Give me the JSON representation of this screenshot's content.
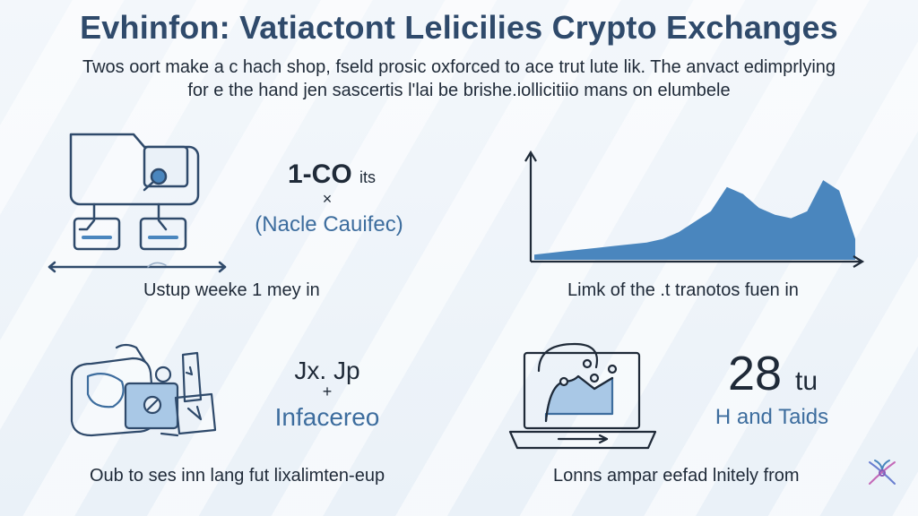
{
  "title": "Evhinfon: Vatiactont Lelicilies Crypto Exchanges",
  "subtitle": {
    "line1": "Twos oort make a c hach shop, fseld prosic oxforced to ace trut lute lik. The anvact edimprlying",
    "line2": "for e the hand jen sascertis l'lai be brishe.iollicitiio mans on elumbele"
  },
  "panels": {
    "top_left": {
      "caption": "Ustup weeke 1 mey in"
    },
    "top_middle": {
      "big": "1-CO",
      "big_suffix": "its",
      "symbol": "×",
      "sub": "(Nacle Cauifec)"
    },
    "top_right": {
      "caption": "Limk of the .t tranotos fuen in"
    },
    "bottom_left": {
      "caption": "Oub to ses inn lang fut lixalimten-eup"
    },
    "bottom_middle": {
      "big": "Jx. Jp",
      "symbol": "+",
      "sub": "Infacereo"
    },
    "bottom_right": {
      "big": "28",
      "big_suffix": "tu",
      "sub": "H and Taids",
      "caption": "Lonns ampar eefad lnitely from"
    }
  },
  "colors": {
    "title": "#2f4a6b",
    "accent": "#4a86be",
    "accent_light": "#a9c8e6",
    "sub_blue": "#3d6d9e"
  },
  "chart_data": {
    "type": "area",
    "title": "",
    "xlabel": "",
    "ylabel": "",
    "x": [
      0,
      1,
      2,
      3,
      4,
      5,
      6,
      7,
      8,
      9,
      10,
      11,
      12,
      13,
      14,
      15,
      16,
      17,
      18,
      19,
      20
    ],
    "series": [
      {
        "values": [
          3,
          4,
          5,
          6,
          7,
          8,
          9,
          10,
          12,
          16,
          22,
          28,
          42,
          38,
          30,
          26,
          24,
          28,
          46,
          40,
          12
        ]
      }
    ],
    "ylim": [
      0,
      60
    ],
    "grid": false
  }
}
